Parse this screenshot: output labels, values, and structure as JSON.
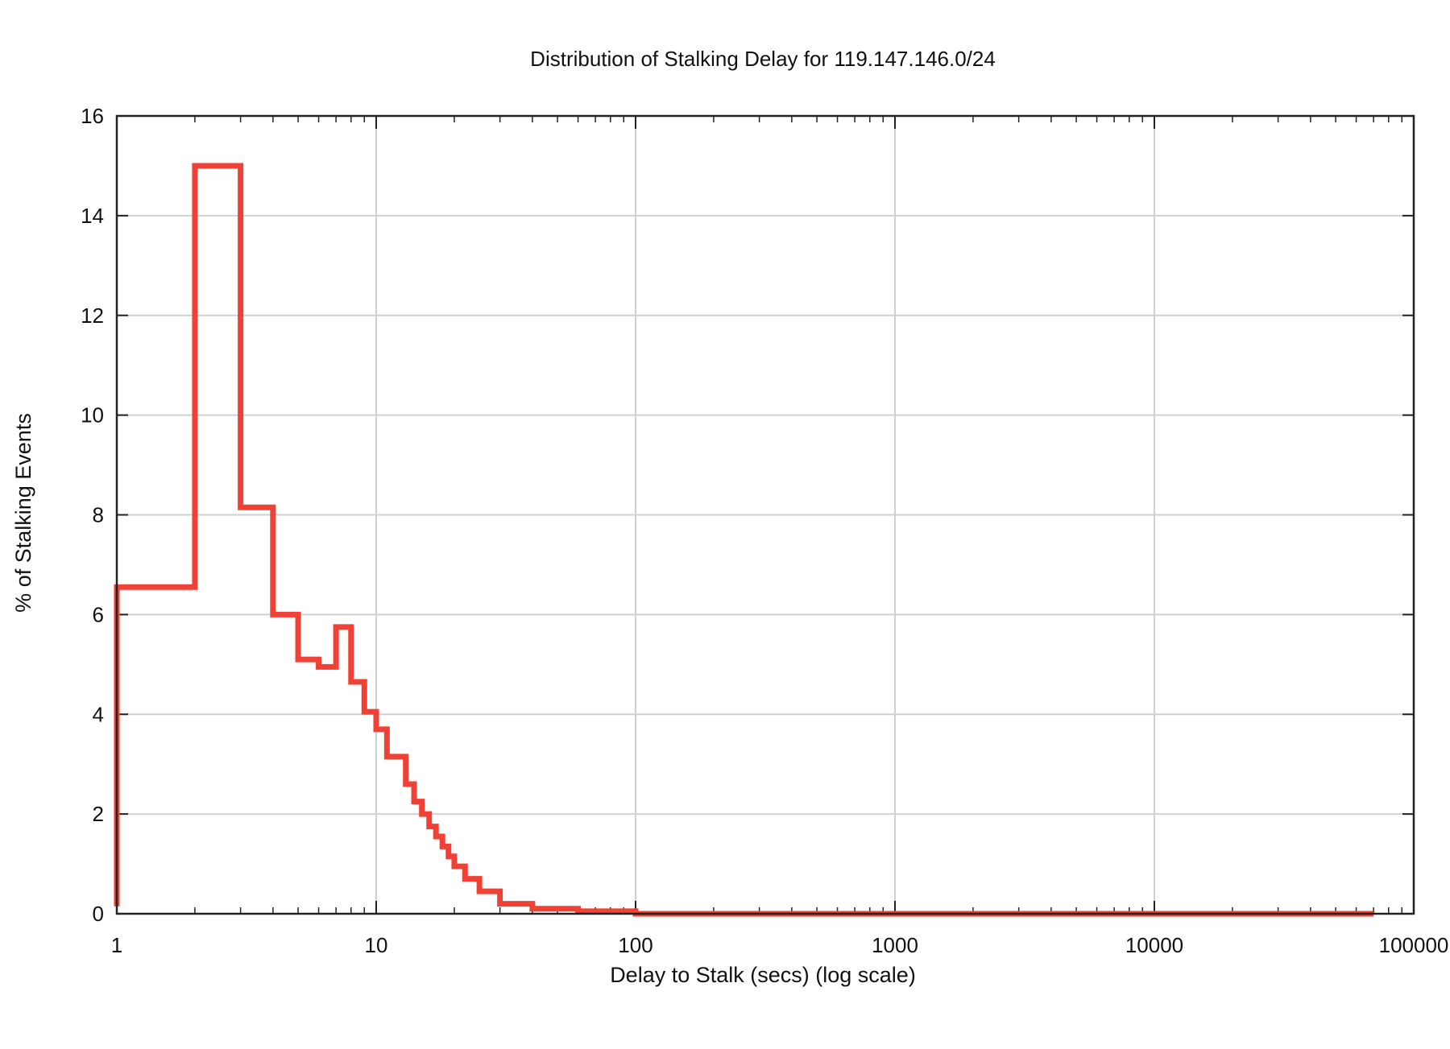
{
  "chart_data": {
    "type": "line",
    "step": true,
    "title": "Distribution of Stalking Delay for 119.147.146.0/24",
    "xlabel": "Delay to Stalk (secs) (log scale)",
    "ylabel": "% of Stalking Events",
    "xscale": "log",
    "xlim": [
      1,
      100000
    ],
    "ylim": [
      0,
      16
    ],
    "xticks": [
      1,
      10,
      100,
      1000,
      10000,
      100000
    ],
    "xtick_labels": [
      "1",
      "10",
      "100",
      "1000",
      "10000",
      "100000"
    ],
    "yticks": [
      0,
      2,
      4,
      6,
      8,
      10,
      12,
      14,
      16
    ],
    "ytick_labels": [
      "0",
      "2",
      "4",
      "6",
      "8",
      "10",
      "12",
      "14",
      "16"
    ],
    "grid": true,
    "line_color": "#ef4136",
    "grid_color": "#d0d0d0",
    "series": [
      {
        "x": [
          1,
          1,
          2,
          2,
          3,
          3,
          4,
          4,
          5,
          5,
          6,
          6,
          7,
          7,
          8,
          8,
          9,
          9,
          10,
          10,
          11,
          11,
          13,
          13,
          14,
          14,
          15,
          15,
          16,
          16,
          17,
          17,
          18,
          18,
          19,
          19,
          20,
          20,
          22,
          22,
          25,
          25,
          30,
          30,
          40,
          40,
          60,
          60,
          100,
          100,
          70000
        ],
        "y": [
          0.15,
          6.55,
          6.55,
          15.0,
          15.0,
          8.15,
          8.15,
          6.0,
          6.0,
          5.1,
          5.1,
          4.95,
          4.95,
          5.75,
          5.75,
          4.65,
          4.65,
          4.05,
          4.05,
          3.7,
          3.7,
          3.15,
          3.15,
          2.6,
          2.6,
          2.25,
          2.25,
          2.0,
          2.0,
          1.75,
          1.75,
          1.55,
          1.55,
          1.35,
          1.35,
          1.15,
          1.15,
          0.95,
          0.95,
          0.7,
          0.7,
          0.45,
          0.45,
          0.2,
          0.2,
          0.1,
          0.1,
          0.05,
          0.05,
          0.0,
          0.0
        ]
      }
    ]
  }
}
